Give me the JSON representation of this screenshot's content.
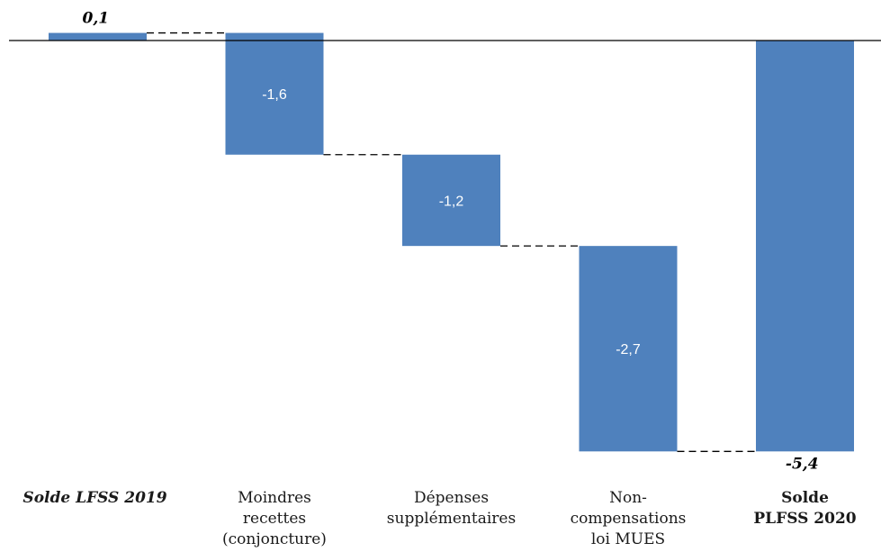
{
  "chart_data": {
    "type": "bar",
    "subtype": "waterfall",
    "categories": [
      "Solde LFSS 2019",
      "Moindres\nrecettes\n(conjoncture)",
      "Dépenses\nsupplémentaires",
      "Non-\ncompensations\nloi MUES",
      "Solde\nPLFSS 2020"
    ],
    "values": [
      0.1,
      -1.6,
      -1.2,
      -2.7,
      -5.4
    ],
    "value_labels": [
      "0,1",
      "-1,6",
      "-1,2",
      "-2,7",
      "-5,4"
    ],
    "bar_kinds": [
      "total",
      "delta",
      "delta",
      "delta",
      "total"
    ],
    "title": "",
    "xlabel": "",
    "ylabel": "",
    "ylim": [
      -5.4,
      0.1
    ],
    "grid": false,
    "legend": "none",
    "colors": {
      "bar": "#4f81bd",
      "axis": "#000000",
      "connector": "#000000",
      "inner_label": "#ffffff",
      "outer_label": "#000000"
    }
  }
}
